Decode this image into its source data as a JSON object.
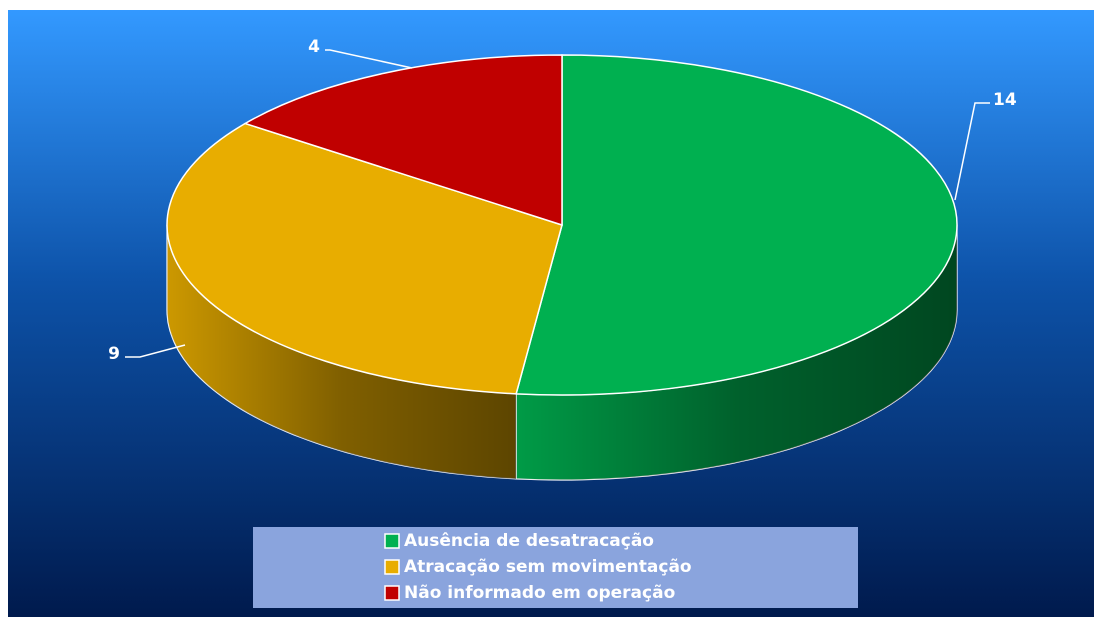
{
  "chart_data": {
    "type": "pie3d",
    "categories": [
      "Ausência de desatracação",
      "Atracação sem movimentação",
      "Não informado em operação"
    ],
    "values": [
      14,
      9,
      4
    ],
    "colors": [
      "#00b050",
      "#e8ad00",
      "#c00000"
    ],
    "legend": "bottom"
  }
}
